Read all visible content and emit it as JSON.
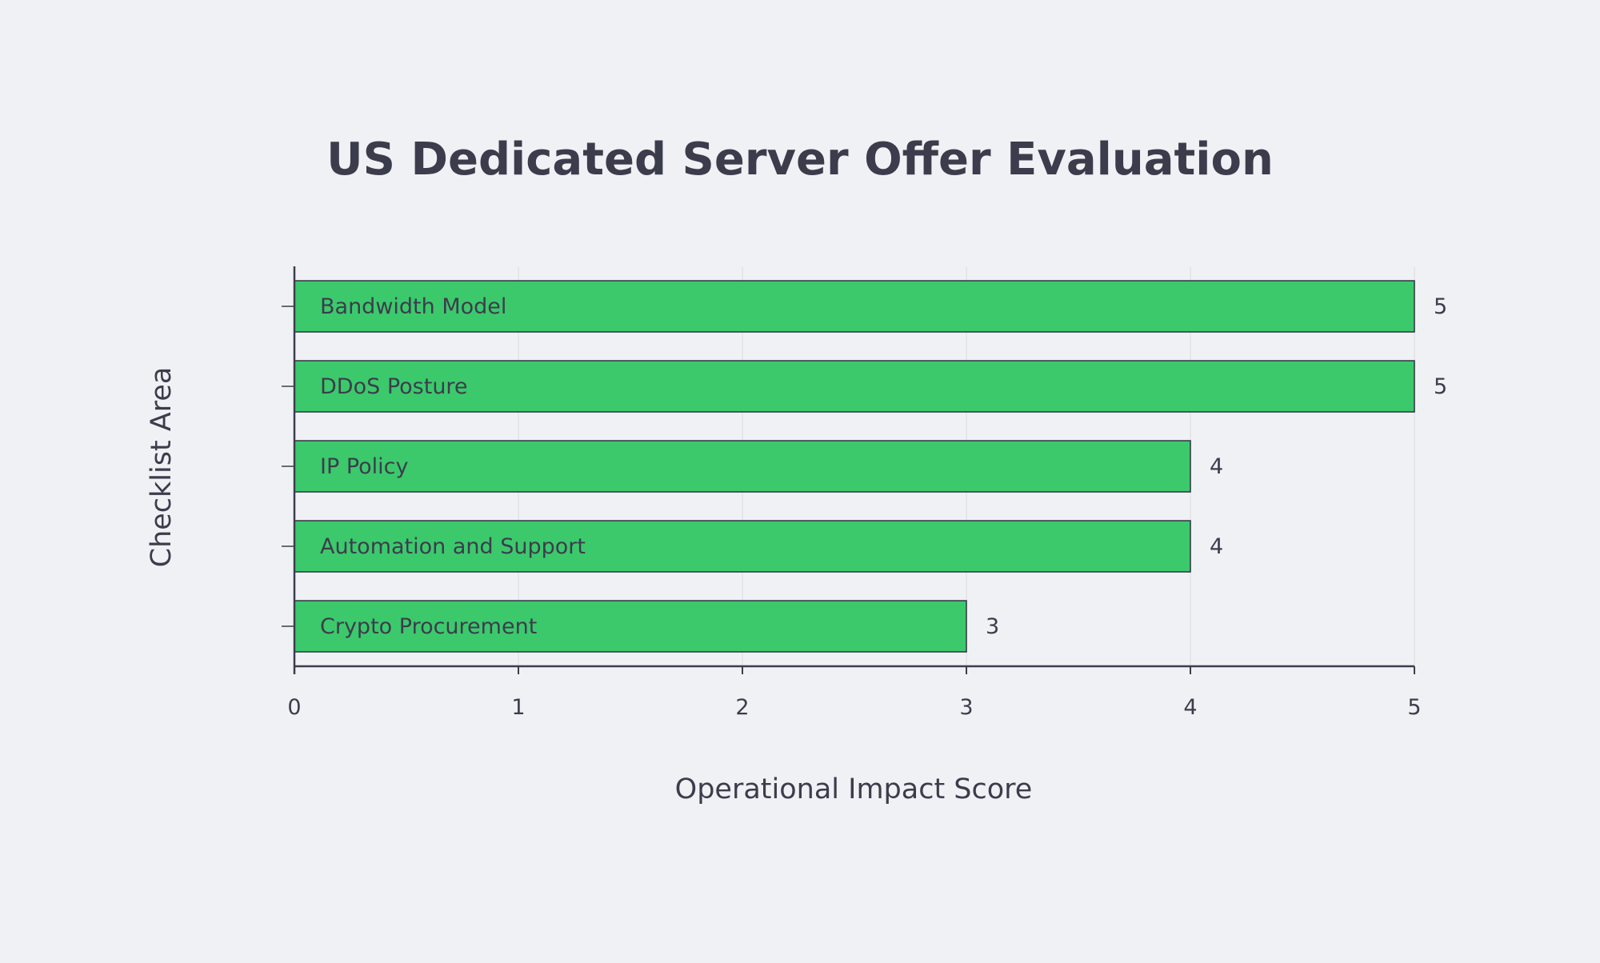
{
  "chart_data": {
    "type": "bar",
    "orientation": "horizontal",
    "title": "US Dedicated Server Offer Evaluation",
    "xlabel": "Operational Impact Score",
    "ylabel": "Checklist Area",
    "categories": [
      "Bandwidth Model",
      "DDoS Posture",
      "IP Policy",
      "Automation and Support",
      "Crypto Procurement"
    ],
    "values": [
      5,
      5,
      4,
      4,
      3
    ],
    "xlim": [
      0,
      5
    ],
    "x_ticks": [
      "0",
      "1",
      "2",
      "3",
      "4",
      "5"
    ],
    "grid": true,
    "category_labels_inside_bars": true,
    "data_labels": true,
    "colors": {
      "bar": "#3cc96c",
      "bar_edge": "#2f3340",
      "text": "#3b3d4c",
      "axis": "#3b3d4c",
      "grid": "#e1e3e8",
      "background": "#f0f1f4"
    }
  }
}
